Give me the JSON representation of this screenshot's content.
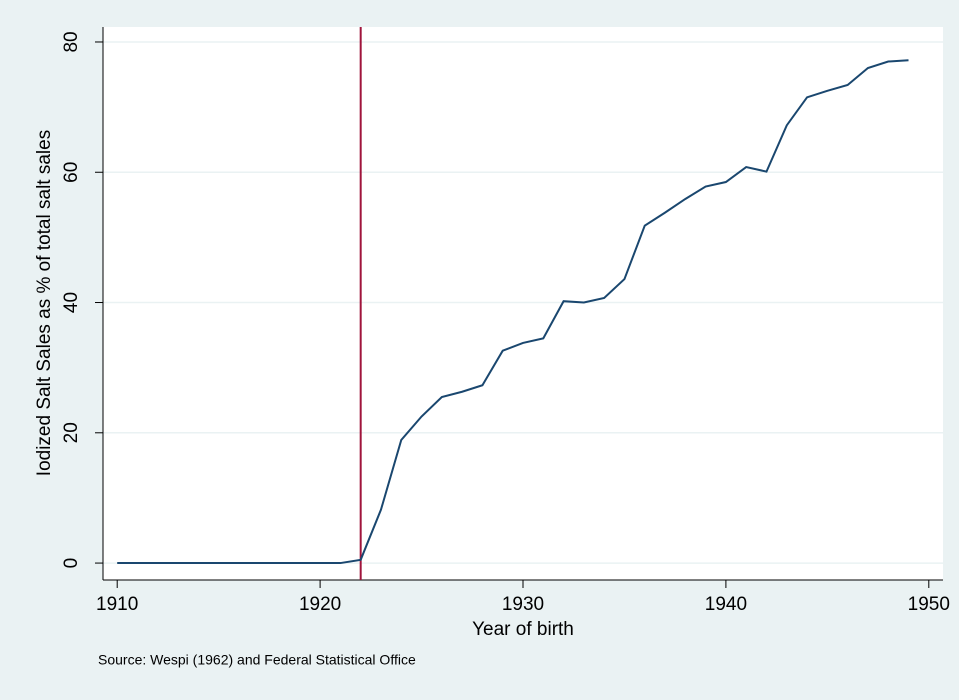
{
  "chart_data": {
    "type": "line",
    "xlabel": "Year of birth",
    "ylabel": "Iodized Salt Sales as % of total salt sales",
    "note": "Source: Wespi (1962) and Federal Statistical Office",
    "x": [
      1910,
      1911,
      1912,
      1913,
      1914,
      1915,
      1916,
      1917,
      1918,
      1919,
      1920,
      1921,
      1922,
      1923,
      1924,
      1925,
      1926,
      1927,
      1928,
      1929,
      1930,
      1931,
      1932,
      1933,
      1934,
      1935,
      1936,
      1937,
      1938,
      1939,
      1940,
      1941,
      1942,
      1943,
      1944,
      1945,
      1946,
      1947,
      1948,
      1949
    ],
    "series": [
      {
        "color": "#1a476f",
        "values": [
          0,
          0,
          0,
          0,
          0,
          0,
          0,
          0,
          0,
          0,
          0,
          0,
          0.5,
          8.2,
          18.9,
          22.5,
          25.5,
          26.3,
          27.3,
          32.6,
          33.8,
          34.5,
          40.2,
          40.0,
          40.7,
          43.6,
          51.8,
          53.8,
          55.9,
          57.8,
          58.5,
          60.8,
          60.1,
          67.2,
          71.5,
          72.5,
          73.4,
          76.0,
          77.0,
          77.2
        ]
      }
    ],
    "vline": {
      "x": 1922,
      "color": "#a0143c"
    },
    "xlim": [
      1909.3,
      1950.7
    ],
    "xticks": [
      1910,
      1920,
      1930,
      1940,
      1950
    ],
    "ylim": [
      -2.6,
      82.3
    ],
    "yticks": [
      0,
      20,
      40,
      60,
      80
    ],
    "grid": true
  }
}
